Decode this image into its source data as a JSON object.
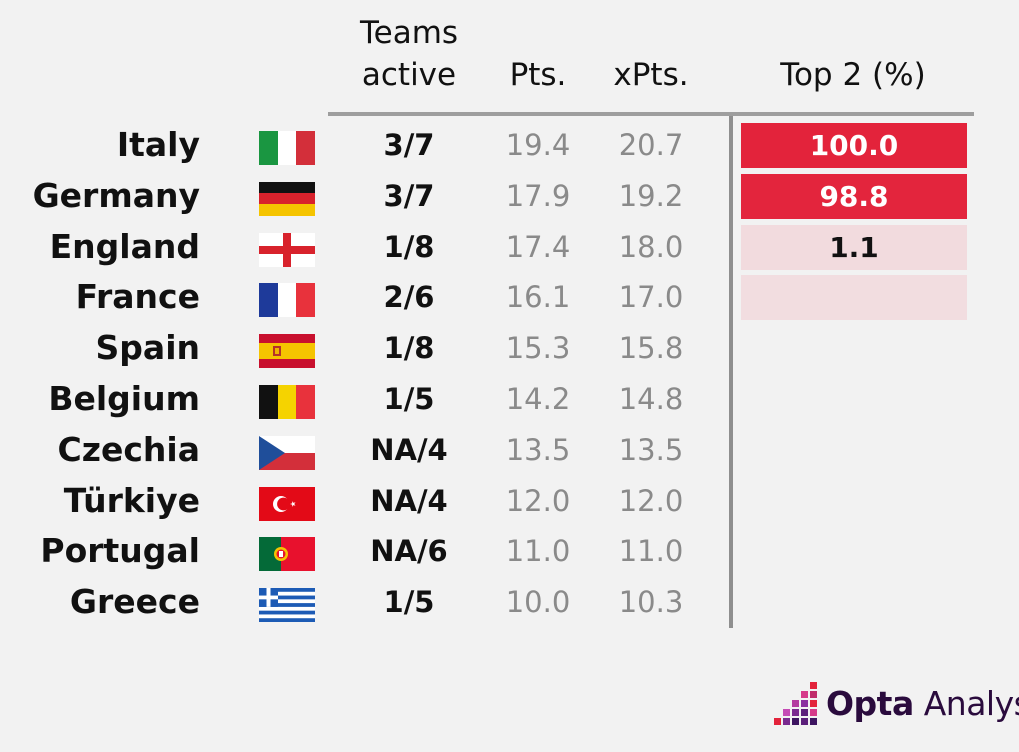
{
  "headers": {
    "teams_active": "Teams\nactive",
    "pts": "Pts.",
    "xpts": "xPts.",
    "top2": "Top 2 (%)"
  },
  "colors": {
    "background": "#f2f2f2",
    "top2_scale_high": "#e3233b",
    "top2_scale_low": "#f2dde0",
    "muted_value": "#8a8a8a"
  },
  "chart_data": {
    "type": "table",
    "columns": [
      "",
      "",
      "Teams active",
      "Pts.",
      "xPts.",
      "Top 2 (%)"
    ],
    "rows": [
      {
        "country": "Italy",
        "flag": "italy-flag",
        "teams_active": "3/7",
        "pts": "19.4",
        "xpts": "20.7",
        "top2": "100.0",
        "top2_value": 100.0
      },
      {
        "country": "Germany",
        "flag": "germany-flag",
        "teams_active": "3/7",
        "pts": "17.9",
        "xpts": "19.2",
        "top2": "98.8",
        "top2_value": 98.8
      },
      {
        "country": "England",
        "flag": "england-flag",
        "teams_active": "1/8",
        "pts": "17.4",
        "xpts": "18.0",
        "top2": "1.1",
        "top2_value": 1.1
      },
      {
        "country": "France",
        "flag": "france-flag",
        "teams_active": "2/6",
        "pts": "16.1",
        "xpts": "17.0",
        "top2": "",
        "top2_value": 0.05
      },
      {
        "country": "Spain",
        "flag": "spain-flag",
        "teams_active": "1/8",
        "pts": "15.3",
        "xpts": "15.8",
        "top2": "",
        "top2_value": null
      },
      {
        "country": "Belgium",
        "flag": "belgium-flag",
        "teams_active": "1/5",
        "pts": "14.2",
        "xpts": "14.8",
        "top2": "",
        "top2_value": null
      },
      {
        "country": "Czechia",
        "flag": "czechia-flag",
        "teams_active": "NA/4",
        "pts": "13.5",
        "xpts": "13.5",
        "top2": "",
        "top2_value": null
      },
      {
        "country": "Türkiye",
        "flag": "turkiye-flag",
        "teams_active": "NA/4",
        "pts": "12.0",
        "xpts": "12.0",
        "top2": "",
        "top2_value": null
      },
      {
        "country": "Portugal",
        "flag": "portugal-flag",
        "teams_active": "NA/6",
        "pts": "11.0",
        "xpts": "11.0",
        "top2": "",
        "top2_value": null
      },
      {
        "country": "Greece",
        "flag": "greece-flag",
        "teams_active": "1/5",
        "pts": "10.0",
        "xpts": "10.3",
        "top2": "",
        "top2_value": null
      }
    ]
  },
  "logo": {
    "brand_bold": "Opta",
    "brand_light": "Analyst",
    "icon": "opta-analyst-logo-icon"
  }
}
